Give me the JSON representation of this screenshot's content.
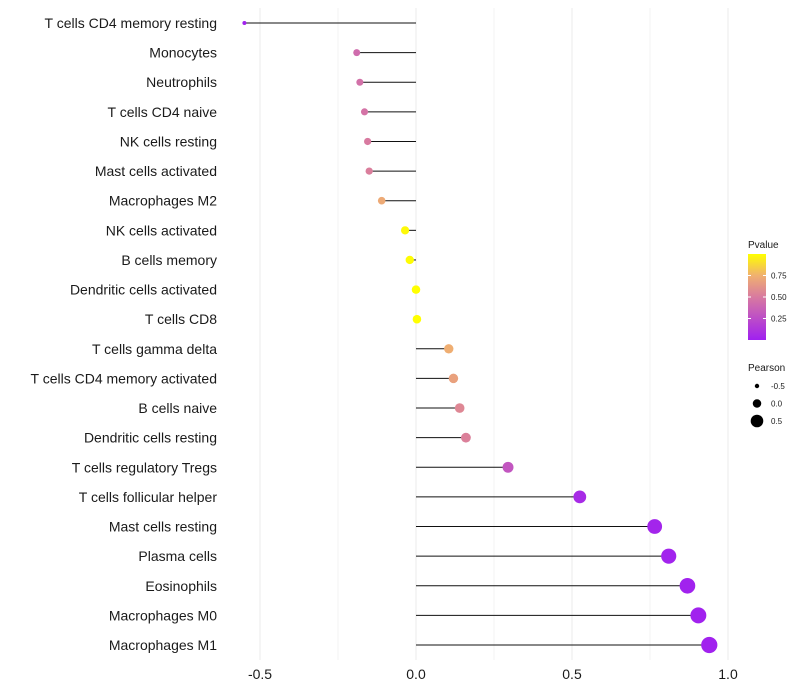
{
  "chart_data": {
    "type": "lollipop",
    "title": "",
    "xlabel": "",
    "ylabel": "",
    "xlim": [
      -0.6,
      1.0
    ],
    "x_ticks": [
      -0.5,
      0.0,
      0.5,
      1.0
    ],
    "x_tick_labels": [
      "-0.5",
      "0.0",
      "0.5",
      "1.0"
    ],
    "grid": true,
    "categories": [
      "T cells CD4 memory resting",
      "Monocytes",
      "Neutrophils",
      "T cells CD4 naive",
      "NK cells resting",
      "Mast cells activated",
      "Macrophages M2",
      "NK cells activated",
      "B cells memory",
      "Dendritic cells activated",
      "T cells CD8",
      "T cells gamma delta",
      "T cells CD4 memory activated",
      "B cells naive",
      "Dendritic cells resting",
      "T cells regulatory  Tregs",
      "T cells follicular helper",
      "Mast cells resting",
      "Plasma cells",
      "Eosinophils",
      "Macrophages M0",
      "Macrophages M1"
    ],
    "pearson": [
      -0.55,
      -0.19,
      -0.18,
      -0.165,
      -0.155,
      -0.15,
      -0.11,
      -0.035,
      -0.02,
      0.0,
      0.003,
      0.105,
      0.12,
      0.14,
      0.16,
      0.295,
      0.525,
      0.765,
      0.81,
      0.87,
      0.905,
      0.94
    ],
    "pvalue": [
      0.01,
      0.42,
      0.45,
      0.46,
      0.5,
      0.52,
      0.72,
      0.98,
      0.99,
      1.0,
      1.0,
      0.74,
      0.68,
      0.56,
      0.53,
      0.3,
      0.06,
      0.03,
      0.02,
      0.01,
      0.01,
      0.01
    ],
    "legend_pvalue": {
      "title": "Pvalue",
      "ticks": [
        0.75,
        0.5,
        0.25
      ],
      "tick_labels": [
        "0.75",
        "0.50",
        "0.25"
      ],
      "color_low": "#A020F0",
      "color_high": "#FFFF00",
      "range": [
        0.0,
        1.0
      ],
      "placement": "right"
    },
    "legend_pearson": {
      "title": "Pearson",
      "values": [
        -0.5,
        0.0,
        0.5
      ],
      "labels": [
        "-0.5",
        "0.0",
        "0.5"
      ],
      "placement": "right"
    }
  }
}
